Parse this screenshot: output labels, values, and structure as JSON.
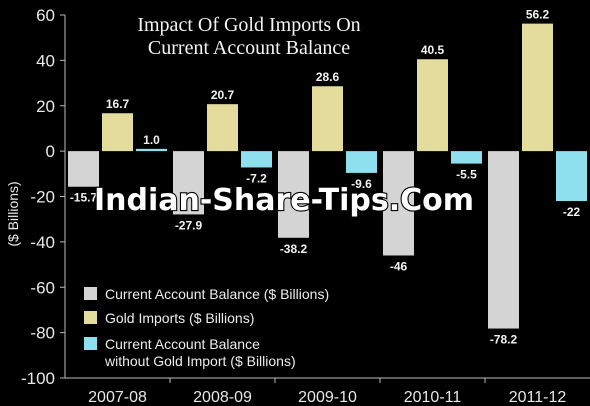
{
  "chart_data": {
    "type": "bar",
    "title": [
      "Impact Of Gold Imports On",
      "Current Account Balance"
    ],
    "ylabel": "($ Billions)",
    "xlabel": "",
    "ylim": [
      -100,
      60
    ],
    "yticks": [
      60,
      40,
      20,
      0,
      -20,
      -40,
      -60,
      -80,
      -100
    ],
    "categories": [
      "2007-08",
      "2008-09",
      "2009-10",
      "2010-11",
      "2011-12"
    ],
    "series": [
      {
        "name": "Current Account Balance ($ Billions)",
        "color": "#d4d4d4",
        "values": [
          -15.7,
          -27.9,
          -38.2,
          -46,
          -78.2
        ],
        "labels": [
          "-15.7",
          "-27.9",
          "-38.2",
          "-46",
          "-78.2"
        ]
      },
      {
        "name": "Gold Imports ($ Billions)",
        "color": "#e4dc9c",
        "values": [
          16.7,
          20.7,
          28.6,
          40.5,
          56.2
        ],
        "labels": [
          "16.7",
          "20.7",
          "28.6",
          "40.5",
          "56.2"
        ]
      },
      {
        "name": [
          "Current Account Balance",
          "without Gold Import  ($ Billions)"
        ],
        "color": "#8ee0ee",
        "values": [
          1.0,
          -7.2,
          -9.6,
          -5.5,
          -22
        ],
        "labels": [
          "1.0",
          "-7.2",
          "-9.6",
          "-5.5",
          "-22"
        ]
      }
    ],
    "legend_position": "bottom-left",
    "grid": false
  },
  "watermark": "Indian-Share-Tips.Com"
}
